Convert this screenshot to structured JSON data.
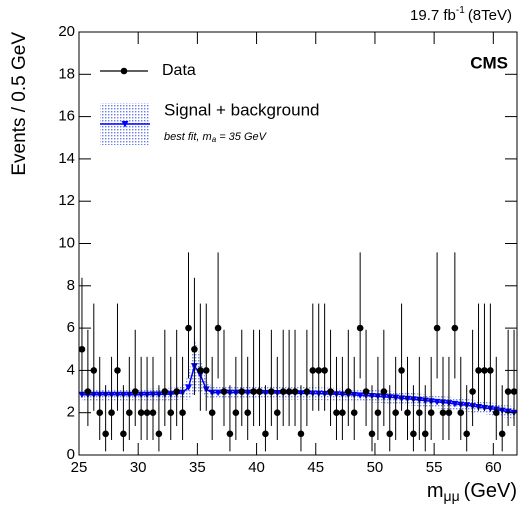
{
  "chart_data": {
    "type": "errorbar",
    "lumi": "19.7 fb",
    "lumi_exponent": "-1",
    "lumi_energy": "(8TeV)",
    "experiment": "CMS",
    "ylabel": "Events / 0.5 GeV",
    "xlabel": "m",
    "xlabel_subscript": "μμ",
    "xlabel_unit": "(GeV)",
    "xlim": [
      25,
      62
    ],
    "ylim": [
      0,
      20
    ],
    "xticks": [
      25,
      30,
      35,
      40,
      45,
      50,
      55,
      60
    ],
    "yticks": [
      0,
      2,
      4,
      6,
      8,
      10,
      12,
      14,
      16,
      18,
      20
    ],
    "x": [
      25.25,
      25.75,
      26.25,
      26.75,
      27.25,
      27.75,
      28.25,
      28.75,
      29.25,
      29.75,
      30.25,
      30.75,
      31.25,
      31.75,
      32.25,
      32.75,
      33.25,
      33.75,
      34.25,
      34.75,
      35.25,
      35.75,
      36.25,
      36.75,
      37.25,
      37.75,
      38.25,
      38.75,
      39.25,
      39.75,
      40.25,
      40.75,
      41.25,
      41.75,
      42.25,
      42.75,
      43.25,
      43.75,
      44.25,
      44.75,
      45.25,
      45.75,
      46.25,
      46.75,
      47.25,
      47.75,
      48.25,
      48.75,
      49.25,
      49.75,
      50.25,
      50.75,
      51.25,
      51.75,
      52.25,
      52.75,
      53.25,
      53.75,
      54.25,
      54.75,
      55.25,
      55.75,
      56.25,
      56.75,
      57.25,
      57.75,
      58.25,
      58.75,
      59.25,
      59.75,
      60.25,
      60.75,
      61.25,
      61.75
    ],
    "series": [
      {
        "name": "Data",
        "color": "#000000",
        "values": [
          5,
          3,
          4,
          2,
          1,
          2,
          4,
          1,
          2,
          3,
          2,
          2,
          2,
          1,
          3,
          2,
          3,
          2,
          6,
          5,
          4,
          4,
          2,
          6,
          3,
          1,
          2,
          3,
          2,
          3,
          3,
          1,
          3,
          2,
          3,
          3,
          3,
          1,
          3,
          4,
          4,
          4,
          3,
          2,
          2,
          3,
          2,
          6,
          3,
          1,
          2,
          3,
          1,
          2,
          4,
          2,
          1,
          2,
          1,
          2,
          6,
          2,
          2,
          6,
          2,
          1,
          3,
          4,
          4,
          4,
          2,
          1,
          3,
          3
        ],
        "errors_low": [
          2.16,
          1.63,
          1.91,
          1.29,
          0.83,
          1.29,
          1.91,
          0.83,
          1.29,
          1.63,
          1.29,
          1.29,
          1.29,
          0.83,
          1.63,
          1.29,
          1.63,
          1.29,
          2.38,
          2.16,
          1.91,
          1.91,
          1.29,
          2.38,
          1.63,
          0.83,
          1.29,
          1.63,
          1.29,
          1.63,
          1.63,
          0.83,
          1.63,
          1.29,
          1.63,
          1.63,
          1.63,
          0.83,
          1.63,
          1.91,
          1.91,
          1.91,
          1.63,
          1.29,
          1.29,
          1.63,
          1.29,
          2.38,
          1.63,
          0.83,
          1.29,
          1.63,
          0.83,
          1.29,
          1.91,
          1.29,
          0.83,
          1.29,
          0.83,
          1.29,
          2.38,
          1.29,
          1.29,
          2.38,
          1.29,
          0.83,
          1.63,
          1.91,
          1.91,
          1.91,
          1.29,
          0.83,
          1.63,
          1.63
        ],
        "errors_high": [
          3.38,
          2.92,
          3.16,
          2.64,
          2.3,
          2.64,
          3.16,
          2.3,
          2.64,
          2.92,
          2.64,
          2.64,
          2.64,
          2.3,
          2.92,
          2.64,
          2.92,
          2.64,
          3.58,
          3.38,
          3.16,
          3.16,
          2.64,
          3.58,
          2.92,
          2.3,
          2.64,
          2.92,
          2.64,
          2.92,
          2.92,
          2.3,
          2.92,
          2.64,
          2.92,
          2.92,
          2.92,
          2.3,
          2.92,
          3.16,
          3.16,
          3.16,
          2.92,
          2.64,
          2.64,
          2.92,
          2.64,
          3.58,
          2.92,
          2.3,
          2.64,
          2.92,
          2.3,
          2.64,
          3.16,
          2.64,
          2.3,
          2.64,
          2.3,
          2.64,
          3.58,
          2.64,
          2.64,
          3.58,
          2.64,
          2.3,
          2.92,
          3.16,
          3.16,
          3.16,
          2.64,
          2.3,
          2.92,
          2.92
        ]
      },
      {
        "name": "Signal + background",
        "color": "#0000ff",
        "band_color": "#c8d0f8",
        "note": "best fit, m",
        "note_subscript": "a",
        "note_rest": " = 35 GeV",
        "values": [
          2.85,
          2.85,
          2.85,
          2.85,
          2.85,
          2.85,
          2.85,
          2.85,
          2.85,
          2.85,
          2.85,
          2.85,
          2.86,
          2.86,
          2.87,
          2.88,
          2.9,
          2.95,
          3.2,
          4.2,
          3.8,
          3.1,
          2.95,
          2.95,
          2.95,
          2.95,
          2.95,
          2.95,
          2.95,
          2.95,
          2.94,
          2.94,
          2.94,
          2.93,
          2.93,
          2.93,
          2.92,
          2.92,
          2.91,
          2.91,
          2.9,
          2.89,
          2.88,
          2.87,
          2.86,
          2.85,
          2.84,
          2.82,
          2.81,
          2.79,
          2.77,
          2.75,
          2.73,
          2.71,
          2.68,
          2.66,
          2.63,
          2.6,
          2.57,
          2.54,
          2.51,
          2.48,
          2.45,
          2.42,
          2.38,
          2.35,
          2.31,
          2.27,
          2.23,
          2.19,
          2.15,
          2.1,
          2.05,
          2.0
        ],
        "errors": [
          0.3,
          0.3,
          0.3,
          0.3,
          0.3,
          0.3,
          0.3,
          0.3,
          0.3,
          0.3,
          0.3,
          0.3,
          0.3,
          0.3,
          0.3,
          0.3,
          0.3,
          0.3,
          0.6,
          1.3,
          0.8,
          0.4,
          0.3,
          0.3,
          0.3,
          0.3,
          0.3,
          0.3,
          0.3,
          0.3,
          0.3,
          0.3,
          0.3,
          0.3,
          0.3,
          0.3,
          0.3,
          0.3,
          0.3,
          0.3,
          0.3,
          0.3,
          0.3,
          0.3,
          0.3,
          0.3,
          0.3,
          0.3,
          0.3,
          0.3,
          0.3,
          0.3,
          0.3,
          0.3,
          0.3,
          0.3,
          0.3,
          0.3,
          0.3,
          0.3,
          0.3,
          0.3,
          0.3,
          0.3,
          0.3,
          0.3,
          0.3,
          0.3,
          0.3,
          0.3,
          0.3,
          0.3,
          0.3,
          0.3
        ]
      }
    ]
  }
}
